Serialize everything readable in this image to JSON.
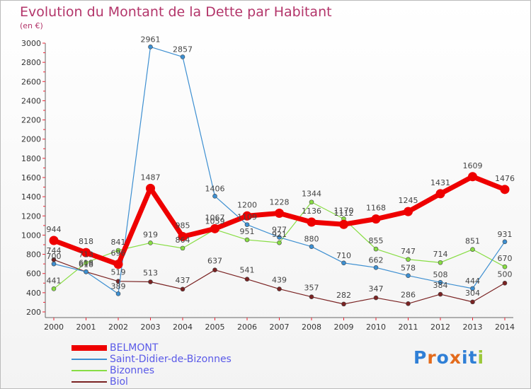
{
  "header": {
    "title": "Evolution du Montant de la Dette par Habitant",
    "unit": "(en €)"
  },
  "logo": {
    "text": "Proxiti",
    "colors": [
      "#2f7fd6",
      "#e36b1c",
      "#2f7fd6",
      "#e36b1c",
      "#2f7fd6",
      "#2f7fd6",
      "#9bc83a"
    ]
  },
  "chart_data": {
    "type": "line",
    "title": "Evolution du Montant de la Dette par Habitant",
    "subtitle": "(en €)",
    "xlabel": "",
    "ylabel": "",
    "categories": [
      "2000",
      "2001",
      "2002",
      "2003",
      "2004",
      "2005",
      "2006",
      "2007",
      "2008",
      "2009",
      "2010",
      "2011",
      "2012",
      "2013",
      "2014"
    ],
    "ylim": [
      200,
      3000
    ],
    "yticks": [
      200,
      400,
      600,
      800,
      1000,
      1200,
      1400,
      1600,
      1800,
      2000,
      2200,
      2400,
      2600,
      2800,
      3000
    ],
    "grid": false,
    "legend_position": "bottom-left",
    "series": [
      {
        "name": "BELMONT",
        "color": "#ee0000",
        "values": [
          944,
          818,
          696,
          1487,
          985,
          1067,
          1200,
          1228,
          1136,
          1112,
          1168,
          1245,
          1431,
          1609,
          1476
        ],
        "labels": [
          "944",
          "818",
          "696",
          "1487",
          "985",
          "1067",
          "1200",
          "1228",
          "1136",
          "1112",
          "1168",
          "1245",
          "1431",
          "1609",
          "1476"
        ]
      },
      {
        "name": "Saint-Didier-de-Bizonnes",
        "color": "#3d8fd1",
        "values": [
          700,
          618,
          389,
          2961,
          2857,
          1406,
          1109,
          977,
          880,
          710,
          662,
          578,
          508,
          444,
          931
        ],
        "labels": [
          "700",
          "618",
          "389",
          "2961",
          "2857",
          "1406",
          "1109",
          "977",
          "880",
          "710",
          "662",
          "578",
          "508",
          "444",
          "931"
        ]
      },
      {
        "name": "Bizonnes",
        "color": "#88dd44",
        "values": [
          441,
          713,
          841,
          919,
          864,
          1059,
          951,
          921,
          1344,
          1170,
          855,
          747,
          714,
          851,
          670
        ],
        "labels": [
          "441",
          "713",
          "841",
          "919",
          "864",
          "1059",
          "951",
          "921",
          "1344",
          "1170",
          "855",
          "747",
          "714",
          "851",
          "670"
        ]
      },
      {
        "name": "Biol",
        "color": "#7a2222",
        "values": [
          744,
          618,
          519,
          513,
          437,
          637,
          541,
          439,
          357,
          282,
          347,
          286,
          384,
          304,
          500
        ],
        "labels": [
          "744",
          "618",
          "519",
          "513",
          "437",
          "637",
          "541",
          "439",
          "357",
          "282",
          "347",
          "286",
          "384",
          "304",
          "500"
        ]
      }
    ]
  }
}
